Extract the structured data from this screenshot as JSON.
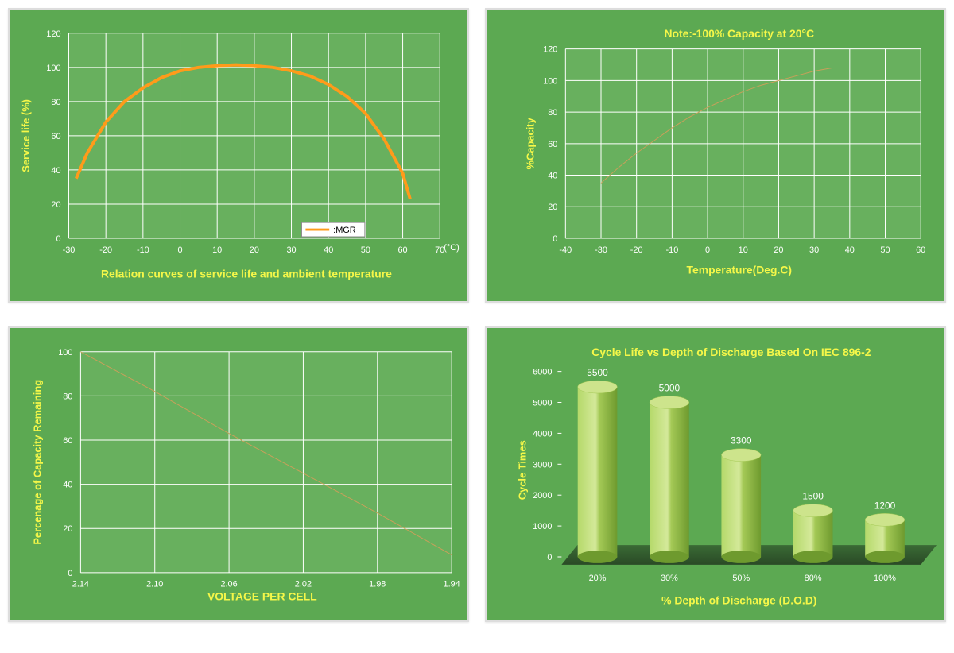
{
  "colors": {
    "panel_bg": "#5ca952",
    "plot_bg": "#68b05e",
    "grid": "#ffffff",
    "axis_text": "#ffffff",
    "label_text": "#f5f749",
    "curve_orange": "#ff9b1a",
    "curve_tan": "#c9a05a",
    "bar_light": "#b5d96a",
    "bar_dark": "#6e9a2e",
    "floor": "#2e5a2a"
  },
  "chart1": {
    "type": "line",
    "title": "Relation curves of service life and ambient temperature",
    "ylabel": "Service life (%)",
    "xunit": "(°C)",
    "legend_label": ":MGR",
    "xticks": [
      "-30",
      "-20",
      "-10",
      "0",
      "10",
      "20",
      "30",
      "40",
      "50",
      "60",
      "70"
    ],
    "yticks": [
      "0",
      "20",
      "40",
      "60",
      "80",
      "100",
      "120"
    ],
    "xlim": [
      -30,
      70
    ],
    "ylim": [
      0,
      120
    ],
    "line_color": "#ff9b1a",
    "line_width": 4,
    "data": [
      {
        "x": -28,
        "y": 35
      },
      {
        "x": -25,
        "y": 50
      },
      {
        "x": -20,
        "y": 68
      },
      {
        "x": -15,
        "y": 80
      },
      {
        "x": -10,
        "y": 88
      },
      {
        "x": -5,
        "y": 94
      },
      {
        "x": 0,
        "y": 98
      },
      {
        "x": 5,
        "y": 100
      },
      {
        "x": 10,
        "y": 101
      },
      {
        "x": 15,
        "y": 101.5
      },
      {
        "x": 20,
        "y": 101
      },
      {
        "x": 25,
        "y": 100
      },
      {
        "x": 30,
        "y": 98
      },
      {
        "x": 35,
        "y": 95
      },
      {
        "x": 40,
        "y": 90
      },
      {
        "x": 45,
        "y": 83
      },
      {
        "x": 50,
        "y": 73
      },
      {
        "x": 55,
        "y": 58
      },
      {
        "x": 60,
        "y": 38
      },
      {
        "x": 62,
        "y": 23
      }
    ]
  },
  "chart2": {
    "type": "line",
    "title": "Note:-100% Capacity at 20°C",
    "ylabel": "%Capacity",
    "xlabel": "Temperature(Deg.C)",
    "xticks": [
      "-40",
      "-30",
      "-20",
      "-10",
      "0",
      "10",
      "20",
      "30",
      "40",
      "50",
      "60"
    ],
    "yticks": [
      "0",
      "20",
      "40",
      "60",
      "80",
      "100",
      "120"
    ],
    "xlim": [
      -40,
      60
    ],
    "ylim": [
      0,
      120
    ],
    "line_color": "#c9a05a",
    "line_width": 1,
    "data": [
      {
        "x": -30,
        "y": 35
      },
      {
        "x": -25,
        "y": 45
      },
      {
        "x": -20,
        "y": 54
      },
      {
        "x": -15,
        "y": 62
      },
      {
        "x": -10,
        "y": 70
      },
      {
        "x": -5,
        "y": 77
      },
      {
        "x": 0,
        "y": 83
      },
      {
        "x": 5,
        "y": 88
      },
      {
        "x": 10,
        "y": 93
      },
      {
        "x": 15,
        "y": 97
      },
      {
        "x": 20,
        "y": 100
      },
      {
        "x": 25,
        "y": 103
      },
      {
        "x": 30,
        "y": 106
      },
      {
        "x": 35,
        "y": 108
      }
    ]
  },
  "chart3": {
    "type": "line",
    "ylabel": "Percenage of Capacity Remaining",
    "xlabel": "VOLTAGE PER CELL",
    "xticks": [
      "2.14",
      "2.10",
      "2.06",
      "2.02",
      "1.98",
      "1.94"
    ],
    "yticks": [
      "0",
      "20",
      "40",
      "60",
      "80",
      "100"
    ],
    "xlim": [
      2.14,
      1.94
    ],
    "ylim": [
      0,
      100
    ],
    "line_color": "#c9a05a",
    "line_width": 1,
    "data": [
      {
        "x": 2.14,
        "y": 100
      },
      {
        "x": 2.1,
        "y": 82
      },
      {
        "x": 2.06,
        "y": 63
      },
      {
        "x": 2.02,
        "y": 45
      },
      {
        "x": 1.98,
        "y": 27
      },
      {
        "x": 1.94,
        "y": 8
      }
    ]
  },
  "chart4": {
    "type": "bar",
    "title": "Cycle Life vs Depth of Discharge Based On IEC 896-2",
    "ylabel": "Cycle Times",
    "xlabel": "% Depth of Discharge (D.O.D)",
    "yticks": [
      "0",
      "1000",
      "2000",
      "3000",
      "4000",
      "5000",
      "6000"
    ],
    "ylim": [
      0,
      6000
    ],
    "categories": [
      "20%",
      "30%",
      "50%",
      "80%",
      "100%"
    ],
    "values": [
      5500,
      5000,
      3300,
      1500,
      1200
    ],
    "bar_labels": [
      "5500",
      "5000",
      "3300",
      "1500",
      "1200"
    ],
    "bar_light": "#b5d96a",
    "bar_dark": "#6e9a2e"
  }
}
